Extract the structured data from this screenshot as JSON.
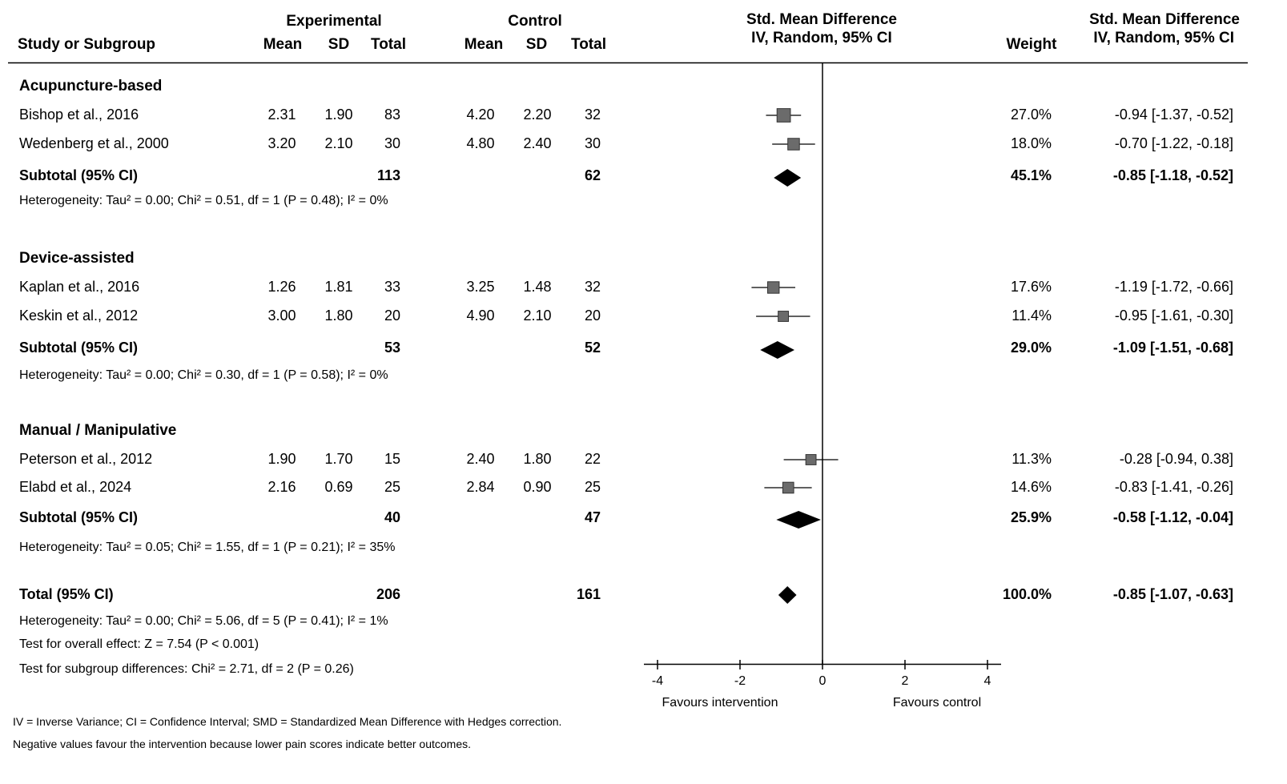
{
  "header": {
    "study_col": "Study or Subgroup",
    "experimental": "Experimental",
    "control": "Control",
    "mean": "Mean",
    "sd": "SD",
    "total": "Total",
    "smd_plot_title": "Std. Mean Difference",
    "smd_plot_method": "IV, Random, 95% CI",
    "weight": "Weight",
    "smd_col_title": "Std. Mean Difference",
    "smd_col_method": "IV, Random, 95% CI"
  },
  "groups": [
    {
      "name": "Acupuncture-based",
      "studies": [
        {
          "label": "Bishop et al., 2016",
          "e_mean": "2.31",
          "e_sd": "1.90",
          "e_total": "83",
          "c_mean": "4.20",
          "c_sd": "2.20",
          "c_total": "32",
          "weight": "27.0%",
          "ci_text": "-0.94 [-1.37, -0.52]",
          "smd": -0.94,
          "lo": -1.37,
          "hi": -0.52,
          "w": 27.0
        },
        {
          "label": "Wedenberg et al., 2000",
          "e_mean": "3.20",
          "e_sd": "2.10",
          "e_total": "30",
          "c_mean": "4.80",
          "c_sd": "2.40",
          "c_total": "30",
          "weight": "18.0%",
          "ci_text": "-0.70 [-1.22, -0.18]",
          "smd": -0.7,
          "lo": -1.22,
          "hi": -0.18,
          "w": 18.0
        }
      ],
      "subtotal": {
        "label": "Subtotal (95% CI)",
        "e_total": "113",
        "c_total": "62",
        "weight": "45.1%",
        "ci_text": "-0.85 [-1.18, -0.52]",
        "smd": -0.85,
        "lo": -1.18,
        "hi": -0.52
      },
      "heterogeneity": "Heterogeneity: Tau² = 0.00; Chi² = 0.51, df = 1 (P = 0.48); I² = 0%"
    },
    {
      "name": "Device-assisted",
      "studies": [
        {
          "label": "Kaplan et al., 2016",
          "e_mean": "1.26",
          "e_sd": "1.81",
          "e_total": "33",
          "c_mean": "3.25",
          "c_sd": "1.48",
          "c_total": "32",
          "weight": "17.6%",
          "ci_text": "-1.19 [-1.72, -0.66]",
          "smd": -1.19,
          "lo": -1.72,
          "hi": -0.66,
          "w": 17.6
        },
        {
          "label": "Keskin et al., 2012",
          "e_mean": "3.00",
          "e_sd": "1.80",
          "e_total": "20",
          "c_mean": "4.90",
          "c_sd": "2.10",
          "c_total": "20",
          "weight": "11.4%",
          "ci_text": "-0.95 [-1.61, -0.30]",
          "smd": -0.95,
          "lo": -1.61,
          "hi": -0.3,
          "w": 11.4
        }
      ],
      "subtotal": {
        "label": "Subtotal (95% CI)",
        "e_total": "53",
        "c_total": "52",
        "weight": "29.0%",
        "ci_text": "-1.09 [-1.51, -0.68]",
        "smd": -1.09,
        "lo": -1.51,
        "hi": -0.68
      },
      "heterogeneity": "Heterogeneity: Tau² = 0.00; Chi² = 0.30, df = 1 (P = 0.58); I² = 0%"
    },
    {
      "name": "Manual / Manipulative",
      "studies": [
        {
          "label": "Peterson et al., 2012",
          "e_mean": "1.90",
          "e_sd": "1.70",
          "e_total": "15",
          "c_mean": "2.40",
          "c_sd": "1.80",
          "c_total": "22",
          "weight": "11.3%",
          "ci_text": "-0.28 [-0.94, 0.38]",
          "smd": -0.28,
          "lo": -0.94,
          "hi": 0.38,
          "w": 11.3
        },
        {
          "label": "Elabd et al., 2024",
          "e_mean": "2.16",
          "e_sd": "0.69",
          "e_total": "25",
          "c_mean": "2.84",
          "c_sd": "0.90",
          "c_total": "25",
          "weight": "14.6%",
          "ci_text": "-0.83 [-1.41, -0.26]",
          "smd": -0.83,
          "lo": -1.41,
          "hi": -0.26,
          "w": 14.6
        }
      ],
      "subtotal": {
        "label": "Subtotal (95% CI)",
        "e_total": "40",
        "c_total": "47",
        "weight": "25.9%",
        "ci_text": "-0.58 [-1.12, -0.04]",
        "smd": -0.58,
        "lo": -1.12,
        "hi": -0.04
      },
      "heterogeneity": "Heterogeneity: Tau² = 0.05; Chi² = 1.55, df = 1 (P = 0.21); I² = 35%"
    }
  ],
  "total": {
    "label": "Total (95% CI)",
    "e_total": "206",
    "c_total": "161",
    "weight": "100.0%",
    "ci_text": "-0.85 [-1.07, -0.63]",
    "smd": -0.85,
    "lo": -1.07,
    "hi": -0.63,
    "heterogeneity": "Heterogeneity: Tau² = 0.00; Chi² = 5.06, df = 5 (P = 0.41); I² = 1%",
    "overall_effect": "Test for overall effect: Z = 7.54 (P < 0.001)",
    "subgroup_diff": "Test for subgroup differences: Chi² = 2.71, df = 2 (P = 0.26)"
  },
  "axis": {
    "xlim": [
      -4,
      4
    ],
    "ticks": [
      -4,
      -2,
      0,
      2,
      4
    ],
    "tick_labels": [
      "-4",
      "-2",
      "0",
      "2",
      "4"
    ],
    "favours_left": "Favours intervention",
    "favours_right": "Favours control"
  },
  "footnotes": [
    "IV = Inverse Variance; CI = Confidence Interval; SMD = Standardized Mean Difference with Hedges correction.",
    "Negative values favour the intervention because lower pain scores indicate better outcomes."
  ],
  "colors": {
    "square": "#6b6b6b",
    "diamond": "#000000",
    "line": "#000000"
  },
  "chart_data": {
    "type": "forest",
    "title": "",
    "xlabel": "",
    "xlim": [
      -4,
      4
    ],
    "series": [
      {
        "name": "Bishop et al., 2016",
        "smd": -0.94,
        "lo": -1.37,
        "hi": -0.52,
        "weight": 27.0
      },
      {
        "name": "Wedenberg et al., 2000",
        "smd": -0.7,
        "lo": -1.22,
        "hi": -0.18,
        "weight": 18.0
      },
      {
        "name": "Kaplan et al., 2016",
        "smd": -1.19,
        "lo": -1.72,
        "hi": -0.66,
        "weight": 17.6
      },
      {
        "name": "Keskin et al., 2012",
        "smd": -0.95,
        "lo": -1.61,
        "hi": -0.3,
        "weight": 11.4
      },
      {
        "name": "Peterson et al., 2012",
        "smd": -0.28,
        "lo": -0.94,
        "hi": 0.38,
        "weight": 11.3
      },
      {
        "name": "Elabd et al., 2024",
        "smd": -0.83,
        "lo": -1.41,
        "hi": -0.26,
        "weight": 14.6
      }
    ],
    "subtotals": [
      {
        "name": "Acupuncture-based",
        "smd": -0.85,
        "lo": -1.18,
        "hi": -0.52,
        "weight": 45.1
      },
      {
        "name": "Device-assisted",
        "smd": -1.09,
        "lo": -1.51,
        "hi": -0.68,
        "weight": 29.0
      },
      {
        "name": "Manual / Manipulative",
        "smd": -0.58,
        "lo": -1.12,
        "hi": -0.04,
        "weight": 25.9
      }
    ],
    "overall": {
      "smd": -0.85,
      "lo": -1.07,
      "hi": -0.63,
      "weight": 100.0
    }
  }
}
